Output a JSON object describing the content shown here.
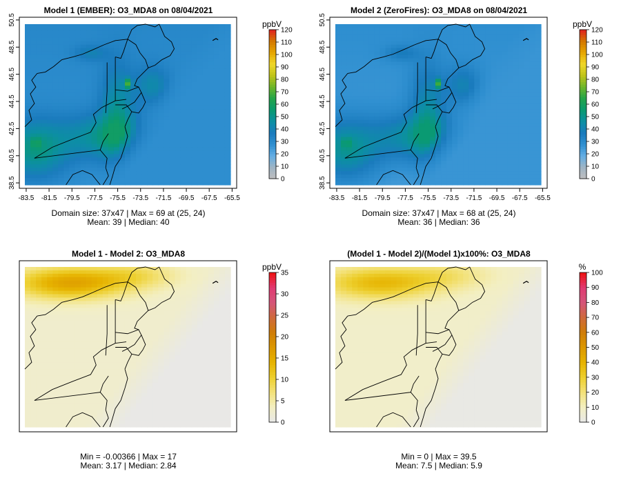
{
  "chart_data": [
    {
      "type": "heatmap",
      "title": "Model 1 (EMBER): O3_MDA8 on 08/04/2021",
      "variable": "O3_MDA8",
      "date": "08/04/2021",
      "x_ticks": [
        "-83.5",
        "-81.5",
        "-79.5",
        "-77.5",
        "-75.5",
        "-73.5",
        "-71.5",
        "-69.5",
        "-67.5",
        "-65.5"
      ],
      "y_ticks": [
        "38.5",
        "40.5",
        "42.5",
        "44.5",
        "46.5",
        "48.5",
        "50.5"
      ],
      "xlim": [
        -84.1,
        -65.1
      ],
      "ylim": [
        38.1,
        50.7
      ],
      "colorbar": {
        "unit": "ppbV",
        "min": 0,
        "max": 120,
        "ticks": [
          "0",
          "10",
          "20",
          "30",
          "40",
          "50",
          "60",
          "70",
          "80",
          "90",
          "100",
          "110",
          "120"
        ]
      },
      "field": {
        "base": 27,
        "sea": 28,
        "inland_peak": 58,
        "hotspot": 69
      },
      "stats": {
        "line1": "Domain size: 37x47 | Max = 69 at (25, 24)",
        "line2": "Mean: 39 |  Median: 40"
      }
    },
    {
      "type": "heatmap",
      "title": "Model 2 (ZeroFires): O3_MDA8 on 08/04/2021",
      "variable": "O3_MDA8",
      "date": "08/04/2021",
      "x_ticks": [
        "-83.5",
        "-81.5",
        "-79.5",
        "-77.5",
        "-75.5",
        "-73.5",
        "-71.5",
        "-69.5",
        "-67.5",
        "-65.5"
      ],
      "y_ticks": [
        "38.5",
        "40.5",
        "42.5",
        "44.5",
        "46.5",
        "48.5",
        "50.5"
      ],
      "xlim": [
        -84.1,
        -65.1
      ],
      "ylim": [
        38.1,
        50.7
      ],
      "colorbar": {
        "unit": "ppbV",
        "min": 0,
        "max": 120,
        "ticks": [
          "0",
          "10",
          "20",
          "30",
          "40",
          "50",
          "60",
          "70",
          "80",
          "90",
          "100",
          "110",
          "120"
        ]
      },
      "field": {
        "base": 24,
        "sea": 26,
        "inland_peak": 55,
        "hotspot": 68
      },
      "stats": {
        "line1": "Domain size: 37x47 | Max = 68 at (25, 24)",
        "line2": "Mean: 36 |  Median: 36"
      }
    },
    {
      "type": "heatmap",
      "title": "Model 1 - Model 2: O3_MDA8",
      "variable": "O3_MDA8",
      "colorbar": {
        "unit": "ppbV",
        "min": 0,
        "max": 35,
        "ticks": [
          "0",
          "5",
          "10",
          "15",
          "20",
          "25",
          "30",
          "35"
        ]
      },
      "field": {
        "nw_peak": 16,
        "background": 2.5,
        "sea": 0.2
      },
      "stats": {
        "line1": "Min = -0.00366 | Max = 17",
        "line2": "Mean: 3.17 |  Median: 2.84"
      }
    },
    {
      "type": "heatmap",
      "title": "(Model 1 - Model 2)/(Model 1)x100%: O3_MDA8",
      "variable": "O3_MDA8",
      "colorbar": {
        "unit": "%",
        "min": 0,
        "max": 100,
        "ticks": [
          "0",
          "10",
          "20",
          "30",
          "40",
          "50",
          "60",
          "70",
          "80",
          "90",
          "100"
        ]
      },
      "field": {
        "nw_peak": 38,
        "background": 8,
        "sea": 1
      },
      "stats": {
        "line1": "Min = 0 | Max = 39.5",
        "line2": "Mean: 7.5 |  Median: 5.9"
      }
    }
  ],
  "colors": {
    "conc_palette": [
      "#bfbfbf",
      "#9fb4c4",
      "#64aee4",
      "#2f8fd0",
      "#1a7bbd",
      "#0c8fa3",
      "#0a9a70",
      "#22a44a",
      "#6cb52a",
      "#bfc31a",
      "#f0d82a",
      "#e6a600",
      "#d47800",
      "#e02020"
    ],
    "diff_palette": [
      "#e8e8e8",
      "#f3efc2",
      "#f3e27a",
      "#edcf2e",
      "#e6b300",
      "#dc9800",
      "#cf7d08",
      "#cf6a3c",
      "#d4557a",
      "#e03a72",
      "#ee1010"
    ],
    "map_lines": "#000000",
    "frame": "#000000"
  }
}
